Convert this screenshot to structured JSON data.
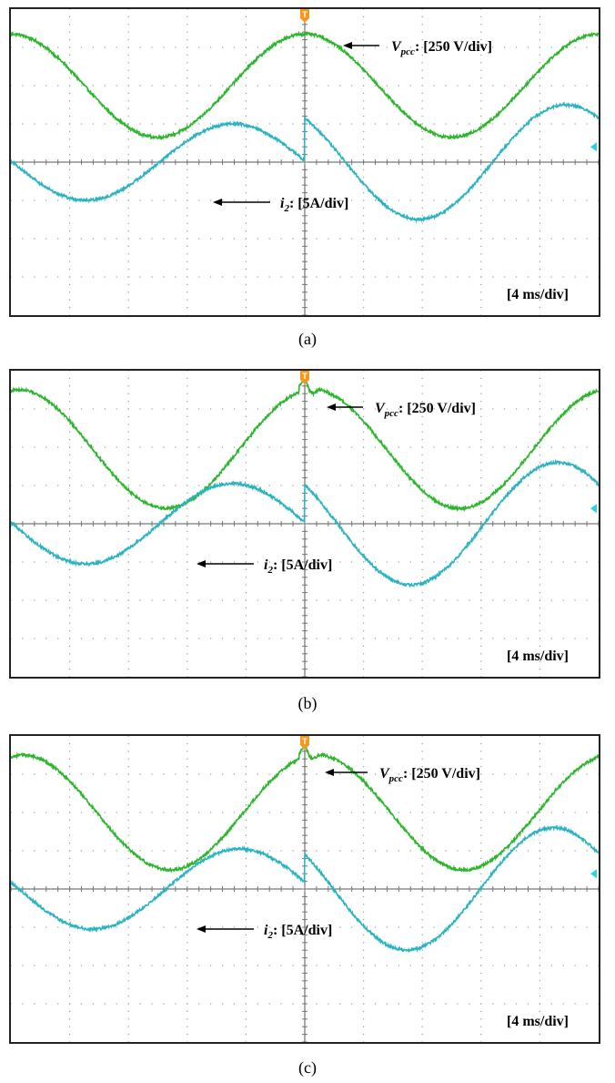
{
  "chart_data": [
    {
      "type": "line",
      "panel": "(a)",
      "title": "",
      "time_div_label": "[4 ms/div]",
      "trigger_marker": "T",
      "xlim": [
        0,
        40
      ],
      "ylim": [
        -4,
        4
      ],
      "grid": true,
      "series": [
        {
          "name": "Vpcc",
          "label_main": "V",
          "label_sub": "pcc",
          "label_rest": ": [250 V/div]",
          "color": "#2db52d",
          "amplitude": 1.35,
          "offset": 2.0,
          "phase_deg": 0,
          "jump_at": 20,
          "glitch": 0,
          "noise": 0.035
        },
        {
          "name": "i2",
          "label_main": "i",
          "label_sub": "2",
          "label_rest": ": [5A/div]",
          "color": "#2bb3c0",
          "amplitude_before": 1.0,
          "amplitude_after": 1.5,
          "offset": 0.0,
          "phase_before_deg": 88,
          "phase_after_deg": 40,
          "jump_at": 20,
          "noise": 0.035
        }
      ]
    },
    {
      "type": "line",
      "panel": "(b)",
      "title": "",
      "time_div_label": "[4 ms/div]",
      "trigger_marker": "T",
      "xlim": [
        0,
        40
      ],
      "ylim": [
        -4,
        4
      ],
      "grid": true,
      "series": [
        {
          "name": "Vpcc",
          "label_main": "V",
          "label_sub": "pcc",
          "label_rest": ": [250 V/div]",
          "color": "#2db52d",
          "amplitude": 1.55,
          "offset": 1.95,
          "phase_deg": -10,
          "jump_at": 20,
          "glitch": 0.35,
          "noise": 0.035
        },
        {
          "name": "i2",
          "label_main": "i",
          "label_sub": "2",
          "label_rest": ": [5A/div]",
          "color": "#2bb3c0",
          "amplitude_before": 1.05,
          "amplitude_after": 1.6,
          "offset": 0.0,
          "phase_before_deg": 88,
          "phase_after_deg": 50,
          "jump_at": 20,
          "noise": 0.035
        }
      ]
    },
    {
      "type": "line",
      "panel": "(c)",
      "title": "",
      "time_div_label": "[4 ms/div]",
      "trigger_marker": "T",
      "xlim": [
        0,
        40
      ],
      "ylim": [
        -4,
        4
      ],
      "grid": true,
      "series": [
        {
          "name": "Vpcc",
          "label_main": "V",
          "label_sub": "pcc",
          "label_rest": ": [250 V/div]",
          "color": "#2db52d",
          "amplitude": 1.5,
          "offset": 2.0,
          "phase_deg": -15,
          "jump_at": 20,
          "glitch": 0.35,
          "noise": 0.035
        },
        {
          "name": "i2",
          "label_main": "i",
          "label_sub": "2",
          "label_rest": ": [5A/div]",
          "color": "#2bb3c0",
          "amplitude_before": 1.05,
          "amplitude_after": 1.6,
          "offset": 0.0,
          "phase_before_deg": 80,
          "phase_after_deg": 55,
          "jump_at": 20,
          "noise": 0.035
        }
      ]
    }
  ],
  "captions": [
    "(a)",
    "(b)",
    "(c)"
  ]
}
